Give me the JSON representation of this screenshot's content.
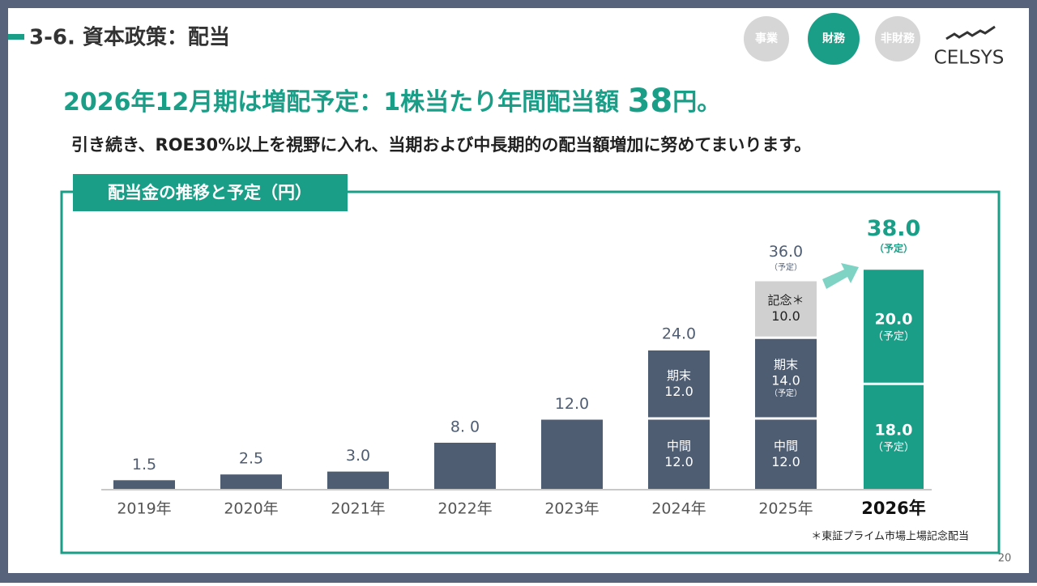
{
  "header": {
    "title": "3-6. 資本政策：配当",
    "tabs": [
      "事業",
      "財務",
      "非財務"
    ],
    "logo": "CELSYS"
  },
  "headline": {
    "lead": "2026年12月期は増配予定：1株当たり年間配当額 ",
    "amount": "38",
    "unit": "円。"
  },
  "subline": "引き続き、ROE30%以上を視野に入れ、当期および中長期的の配当額増加に努めてまいります。",
  "chart_data": {
    "type": "stacked_bar",
    "title": "配当金の推移と予定（円）",
    "categories": [
      "2019年",
      "2020年",
      "2021年",
      "2022年",
      "2023年",
      "2024年",
      "2025年",
      "2026年"
    ],
    "ylim": [
      0,
      40
    ],
    "series": [
      {
        "values": [
          1.5,
          2.5,
          3.0,
          8.0,
          12.0,
          null,
          null,
          null
        ],
        "value_labels": [
          "1.5",
          "2.5",
          "3.0",
          "8. 0",
          "12.0",
          null,
          null,
          null
        ],
        "colors": [
          "#4f5d73",
          "#4f5d73",
          "#4f5d73",
          "#4f5d73",
          "#4f5d73",
          null,
          null,
          null
        ]
      },
      {
        "values": [
          null,
          null,
          null,
          null,
          null,
          12.0,
          12.0,
          18.0
        ],
        "value_labels": [
          null,
          null,
          null,
          null,
          null,
          "12.0",
          "12.0",
          "18.0"
        ],
        "labels": [
          null,
          null,
          null,
          null,
          null,
          "中間",
          "中間",
          null
        ],
        "notes": [
          null,
          null,
          null,
          null,
          null,
          null,
          null,
          "（予定）"
        ],
        "colors": [
          null,
          null,
          null,
          null,
          null,
          "#4f5d73",
          "#4f5d73",
          "#1a9e87"
        ]
      },
      {
        "values": [
          null,
          null,
          null,
          null,
          null,
          12.0,
          14.0,
          20.0
        ],
        "value_labels": [
          null,
          null,
          null,
          null,
          null,
          "12.0",
          "14.0",
          "20.0"
        ],
        "labels": [
          null,
          null,
          null,
          null,
          null,
          "期末",
          "期末",
          null
        ],
        "notes": [
          null,
          null,
          null,
          null,
          null,
          null,
          "（予定）",
          "（予定）"
        ],
        "colors": [
          null,
          null,
          null,
          null,
          null,
          "#4f5d73",
          "#4f5d73",
          "#1a9e87"
        ]
      },
      {
        "values": [
          null,
          null,
          null,
          null,
          null,
          null,
          10.0,
          null
        ],
        "value_labels": [
          null,
          null,
          null,
          null,
          null,
          null,
          "10.0",
          null
        ],
        "labels": [
          null,
          null,
          null,
          null,
          null,
          null,
          "記念＊",
          null
        ],
        "colors": [
          null,
          null,
          null,
          null,
          null,
          null,
          "#d0d0d0",
          null
        ]
      }
    ],
    "total_labels": [
      null,
      null,
      null,
      null,
      null,
      "24.0",
      "36.0",
      "38.0"
    ],
    "total_notes": [
      null,
      null,
      null,
      null,
      null,
      null,
      "（予定）",
      "（予定）"
    ],
    "footnote": "＊東証プライム市場上場記念配当"
  },
  "page_number": "20"
}
